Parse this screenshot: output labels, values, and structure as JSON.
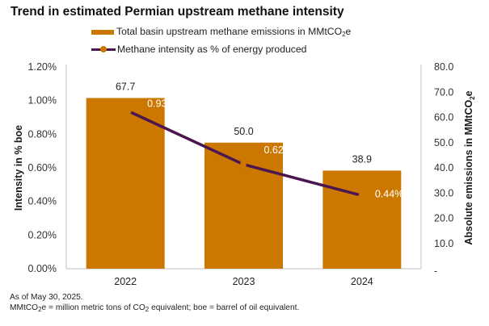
{
  "chart_data": {
    "type": "bar",
    "title": "Trend in estimated Permian upstream methane intensity",
    "categories": [
      "2022",
      "2023",
      "2024"
    ],
    "series": [
      {
        "name": "Total basin upstream methane emissions in MMtCO2e",
        "kind": "bar",
        "axis": "right",
        "values": [
          67.7,
          50.0,
          38.9
        ],
        "labels": [
          "67.7",
          "50.0",
          "38.9"
        ],
        "color": "#CC7700"
      },
      {
        "name": "Methane intensity as % of energy produced",
        "kind": "line",
        "axis": "left",
        "values": [
          0.93,
          0.62,
          0.44
        ],
        "labels": [
          "0.93%",
          "0.62%",
          "0.44%"
        ],
        "color": "#4B1650",
        "marker_color": "#CC7700"
      }
    ],
    "ylabel_left": "Intensity in % boe",
    "ylabel_right": "Absolute emissions in MMtCO2e",
    "ylim_left": [
      0,
      1.2
    ],
    "ylim_right": [
      0,
      80
    ],
    "yticks_left": [
      "0.00%",
      "0.20%",
      "0.40%",
      "0.60%",
      "0.80%",
      "1.00%",
      "1.20%"
    ],
    "yticks_right": [
      "-",
      "10.0",
      "20.0",
      "30.0",
      "40.0",
      "50.0",
      "60.0",
      "70.0",
      "80.0"
    ],
    "grid": false,
    "legend_position": "top-center"
  },
  "legend": {
    "bar_label_pre": "Total basin upstream methane emissions in MMtCO",
    "bar_label_sub": "2",
    "bar_label_post": "e",
    "line_label": "Methane intensity as % of energy produced"
  },
  "axes": {
    "left_label": "Intensity in % boe",
    "right_label_pre": "Absolute emissions in MMtCO",
    "right_label_sub": "2",
    "right_label_post": "e"
  },
  "footer": {
    "line1": "As of May 30, 2025.",
    "line2_a": "MMtCO",
    "line2_sub1": "2",
    "line2_b": "e = million metric tons of CO",
    "line2_sub2": "2",
    "line2_c": " equivalent; boe = barrel of oil equivalent."
  }
}
